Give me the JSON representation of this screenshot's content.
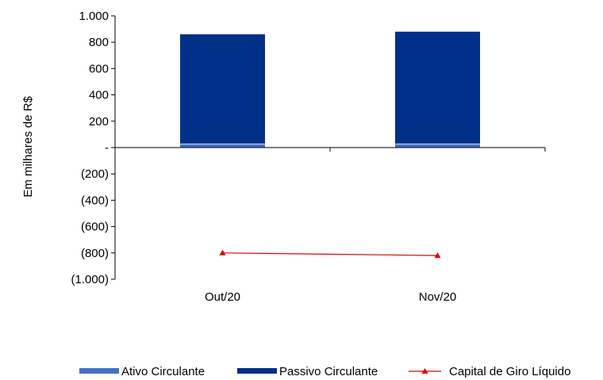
{
  "chart_data": {
    "type": "bar",
    "categories": [
      "Out/20",
      "Nov/20"
    ],
    "series": [
      {
        "name": "Ativo Circulante",
        "type": "bar",
        "values": [
          30,
          30
        ],
        "color": "#4472C4"
      },
      {
        "name": "Passivo Circulante",
        "type": "bar",
        "values": [
          830,
          850
        ],
        "color": "#003087"
      },
      {
        "name": "Capital de Giro Líquido",
        "type": "line",
        "values": [
          -800,
          -820
        ],
        "color": "#E00000",
        "marker": "triangle"
      }
    ],
    "ylabel": "Em milhares de R$",
    "ylim": [
      -1000,
      1000
    ],
    "ytick_values": [
      1000,
      800,
      600,
      400,
      200,
      0,
      -200,
      -400,
      -600,
      -800,
      -1000
    ],
    "ytick_labels": [
      "1.000",
      "800",
      "600",
      "400",
      "200",
      "-",
      "(200)",
      "(400)",
      "(600)",
      "(800)",
      "(1.000)"
    ],
    "stacked": true,
    "legend_position": "bottom"
  }
}
